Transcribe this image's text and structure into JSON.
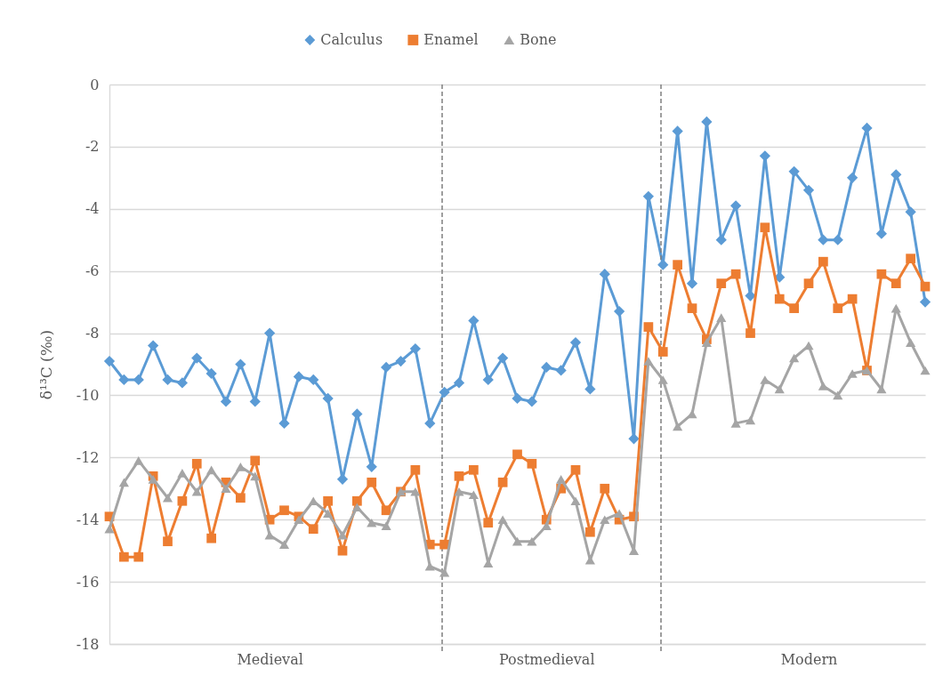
{
  "chart_data": {
    "type": "line",
    "ylabel": "δ¹³C (‰)",
    "categories": [
      null,
      null,
      null,
      null,
      null,
      null,
      null,
      null,
      null,
      null,
      null,
      "Medieval",
      null,
      null,
      null,
      null,
      null,
      null,
      null,
      null,
      null,
      null,
      null,
      null,
      null,
      null,
      null,
      null,
      null,
      null,
      "Postmedieval",
      null,
      null,
      null,
      null,
      null,
      null,
      null,
      null,
      null,
      null,
      null,
      null,
      null,
      null,
      null,
      null,
      null,
      "Modern",
      null,
      null,
      null,
      null,
      null,
      null,
      null,
      null
    ],
    "series": [
      {
        "name": "Calculus",
        "color": "#5b9bd5",
        "marker": "diamond",
        "values": [
          -8.9,
          -9.5,
          -9.5,
          -8.4,
          -9.5,
          -9.6,
          -8.8,
          -9.3,
          -10.2,
          -9.0,
          -10.2,
          -8.0,
          -10.9,
          -9.4,
          -9.5,
          -10.1,
          -12.7,
          -10.6,
          -12.3,
          -9.1,
          -8.9,
          -8.5,
          -10.9,
          -9.9,
          -9.6,
          -7.6,
          -9.5,
          -8.8,
          -10.1,
          -10.2,
          -9.1,
          -9.2,
          -8.3,
          -9.8,
          -6.1,
          -7.3,
          -11.4,
          -3.6,
          -5.8,
          -1.5,
          -6.4,
          -1.2,
          -5.0,
          -3.9,
          -6.8,
          -2.3,
          -6.2,
          -2.8,
          -3.4,
          -5.0,
          -5.0,
          -3.0,
          -1.4,
          -4.8,
          -2.9,
          -4.1,
          -7.0
        ]
      },
      {
        "name": "Enamel",
        "color": "#ed7d31",
        "marker": "square",
        "values": [
          -13.9,
          -15.2,
          -15.2,
          -12.6,
          -14.7,
          -13.4,
          -12.2,
          -14.6,
          -12.8,
          -13.3,
          -12.1,
          -14.0,
          -13.7,
          -13.9,
          -14.3,
          -13.4,
          -15.0,
          -13.4,
          -12.8,
          -13.7,
          -13.1,
          -12.4,
          -14.8,
          -14.8,
          -12.6,
          -12.4,
          -14.1,
          -12.8,
          -11.9,
          -12.2,
          -14.0,
          -13.0,
          -12.4,
          -14.4,
          -13.0,
          -14.0,
          -13.9,
          -7.8,
          -8.6,
          -5.8,
          -7.2,
          -8.2,
          -6.4,
          -6.1,
          -8.0,
          -4.6,
          -6.9,
          -7.2,
          -6.4,
          -5.7,
          -7.2,
          -6.9,
          -9.2,
          -6.1,
          -6.4,
          -5.6,
          -6.5
        ]
      },
      {
        "name": "Bone",
        "color": "#a5a5a5",
        "marker": "triangle",
        "values": [
          -14.3,
          -12.8,
          -12.1,
          -12.7,
          -13.3,
          -12.5,
          -13.1,
          -12.4,
          -13.0,
          -12.3,
          -12.6,
          -14.5,
          -14.8,
          -14.0,
          -13.4,
          -13.8,
          -14.5,
          -13.6,
          -14.1,
          -14.2,
          -13.1,
          -13.1,
          -15.5,
          -15.7,
          -13.1,
          -13.2,
          -15.4,
          -14.0,
          -14.7,
          -14.7,
          -14.2,
          -12.7,
          -13.4,
          -15.3,
          -14.0,
          -13.8,
          -15.0,
          -8.9,
          -9.5,
          -11.0,
          -10.6,
          -8.3,
          -7.5,
          -10.9,
          -10.8,
          -9.5,
          -9.8,
          -8.8,
          -8.4,
          -9.7,
          -10.0,
          -9.3,
          -9.2,
          -9.8,
          -7.2,
          -8.3,
          -9.2
        ]
      }
    ],
    "ylim": [
      -18,
      0
    ],
    "yticks": [
      -18,
      -16,
      -14,
      -12,
      -10,
      -8,
      -6,
      -4,
      -2,
      0
    ],
    "grid": "y",
    "legend": "top"
  }
}
